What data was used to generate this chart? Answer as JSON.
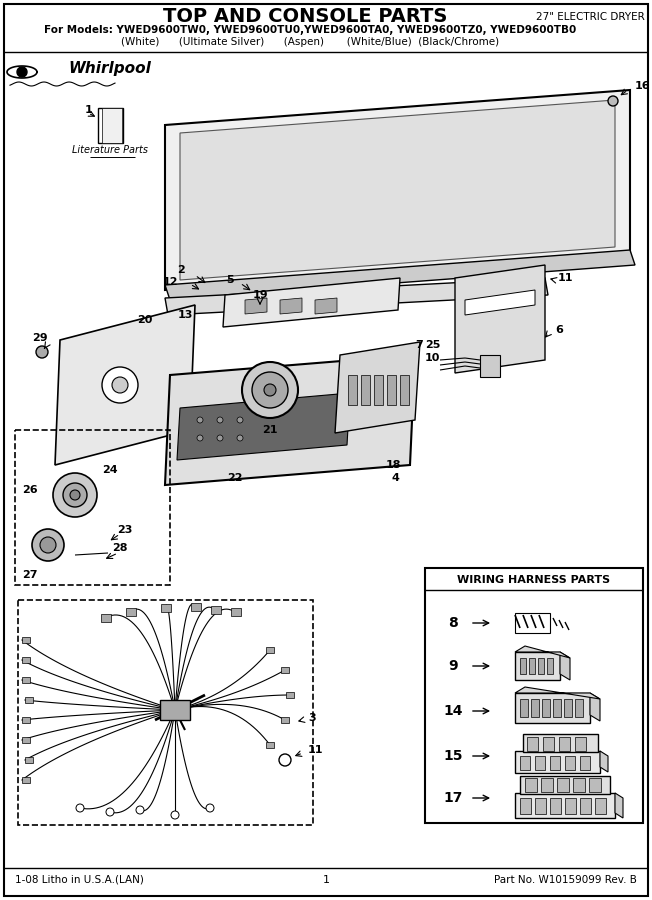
{
  "title": "TOP AND CONSOLE PARTS",
  "subtitle_right": "27\" ELECTRIC DRYER",
  "models_line": "For Models: YWED9600TW0, YWED9600TU0,YWED9600TA0, YWED9600TZ0, YWED9600TB0",
  "colors_line": "(White)      (Ultimate Silver)      (Aspen)       (White/Blue)  (Black/Chrome)",
  "footer_left": "1-08 Litho in U.S.A.(LAN)",
  "footer_center": "1",
  "footer_right": "Part No. W10159099 Rev. B",
  "wiring_box_title": "WIRING HARNESS PARTS",
  "wiring_items": [
    "8",
    "9",
    "14",
    "15",
    "17"
  ],
  "bg_color": "#ffffff",
  "text_color": "#000000",
  "fig_width": 6.52,
  "fig_height": 9.0,
  "dpi": 100
}
